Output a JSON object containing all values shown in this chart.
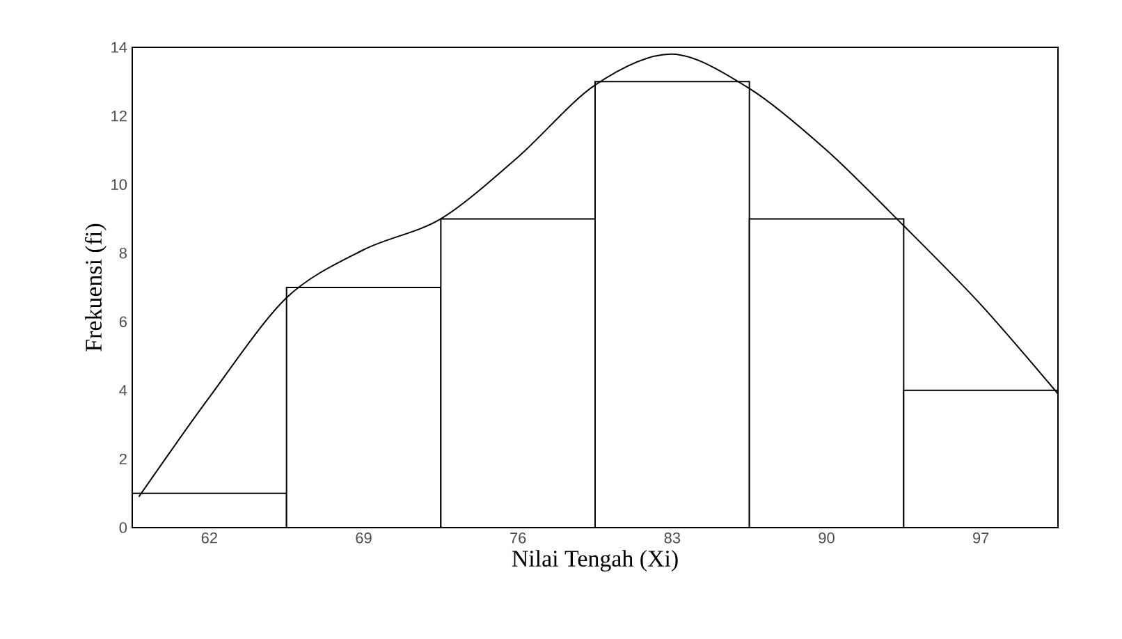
{
  "chart_data": {
    "type": "bar",
    "xlabel": "Nilai Tengah (Xi)",
    "ylabel": "Frekuensi (fi)",
    "x": [
      62,
      69,
      76,
      83,
      90,
      97
    ],
    "xlim": [
      58.5,
      100.5
    ],
    "xticks": [
      62,
      69,
      76,
      83,
      90,
      97
    ],
    "ylim": [
      0,
      14
    ],
    "yticks": [
      0,
      2,
      4,
      6,
      8,
      10,
      12,
      14
    ],
    "series": [
      {
        "color": "#ffffff",
        "values": [
          1,
          7,
          9,
          13,
          9,
          4
        ]
      },
      {
        "type": "line",
        "color": "#000000",
        "x": [
          58.8,
          62,
          65.5,
          69,
          72.5,
          76,
          79.5,
          83,
          86.5,
          90,
          93.5,
          97,
          100.5
        ],
        "values": [
          0.9,
          3.8,
          6.7,
          8.1,
          9,
          10.8,
          12.9,
          13.8,
          12.8,
          11,
          8.8,
          6.5,
          3.9
        ]
      }
    ]
  }
}
